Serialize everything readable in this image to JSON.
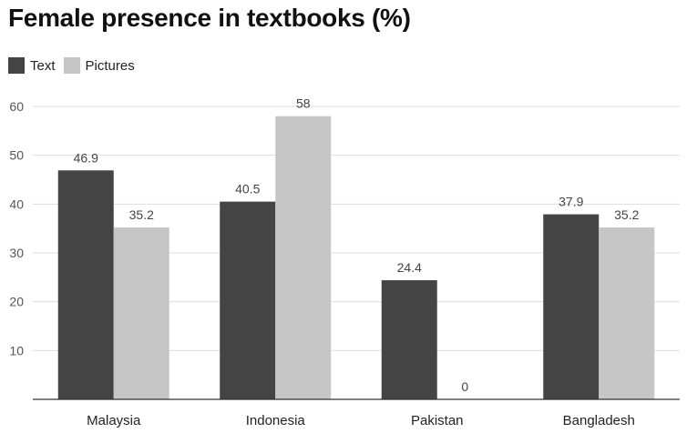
{
  "chart_data": {
    "type": "bar",
    "title": "Female presence in textbooks (%)",
    "categories": [
      "Malaysia",
      "Indonesia",
      "Pakistan",
      "Bangladesh"
    ],
    "series": [
      {
        "name": "Text",
        "color": "#444444",
        "values": [
          46.9,
          40.5,
          24.4,
          37.9
        ]
      },
      {
        "name": "Pictures",
        "color": "#c6c6c6",
        "values": [
          35.2,
          58,
          0,
          35.2
        ]
      }
    ],
    "y_ticks": [
      10,
      20,
      30,
      40,
      50,
      60
    ],
    "ylim": [
      0,
      60
    ],
    "grid": true,
    "legend": "top-left",
    "xlabel": "",
    "ylabel": ""
  }
}
